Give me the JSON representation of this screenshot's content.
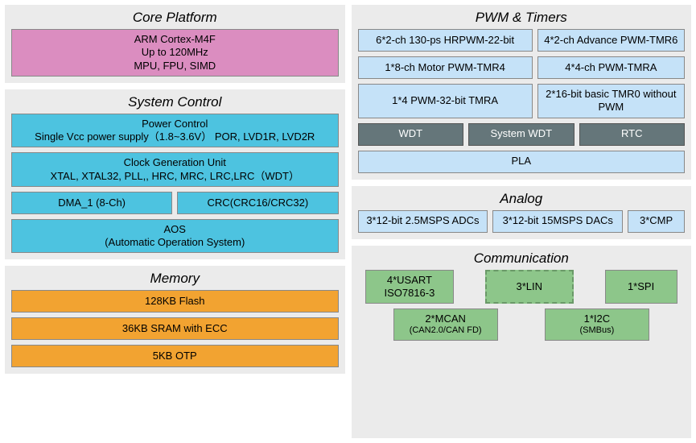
{
  "core": {
    "title": "Core Platform",
    "lines": [
      "ARM Cortex-M4F",
      "Up to 120MHz",
      "MPU, FPU, SIMD"
    ],
    "color": "#db8dc0"
  },
  "sysctrl": {
    "title": "System Control",
    "power": {
      "l1": "Power Control",
      "l2": "Single Vcc power supply（1.8~3.6V） POR, LVD1R, LVD2R"
    },
    "clock": {
      "l1": "Clock Generation Unit",
      "l2": "XTAL, XTAL32, PLL,, HRC, MRC, LRC,LRC（WDT）"
    },
    "dma": "DMA_1 (8-Ch)",
    "crc": "CRC(CRC16/CRC32)",
    "aos": {
      "l1": "AOS",
      "l2": "(Automatic Operation System)"
    },
    "color": "#4dc3e0"
  },
  "memory": {
    "title": "Memory",
    "items": [
      "128KB Flash",
      "36KB SRAM with ECC",
      "5KB OTP"
    ],
    "color": "#f2a331"
  },
  "pwm": {
    "title": "PWM & Timers",
    "r1a": "6*2-ch 130-ps HRPWM-22-bit",
    "r1b": "4*2-ch Advance PWM-TMR6",
    "r2a": "1*8-ch Motor PWM-TMR4",
    "r2b": "4*4-ch PWM-TMRA",
    "r3a": "1*4 PWM-32-bit TMRA",
    "r3b": "2*16-bit basic TMR0 without PWM",
    "wdt": "WDT",
    "syswdt": "System WDT",
    "rtc": "RTC",
    "pla": "PLA",
    "color_light": "#c5e2f8",
    "color_dark": "#65767a"
  },
  "analog": {
    "title": "Analog",
    "adc": "3*12-bit  2.5MSPS ADCs",
    "dac": "3*12-bit  15MSPS DACs",
    "cmp": "3*CMP",
    "color": "#c5e2f8"
  },
  "comm": {
    "title": "Communication",
    "usart": {
      "l1": "4*USART",
      "l2": "ISO7816-3"
    },
    "lin": "3*LIN",
    "spi": "1*SPI",
    "mcan": {
      "l1": "2*MCAN",
      "l2": "(CAN2.0/CAN FD)"
    },
    "i2c": {
      "l1": "1*I2C",
      "l2": "(SMBus)"
    },
    "color": "#8dc68a"
  }
}
